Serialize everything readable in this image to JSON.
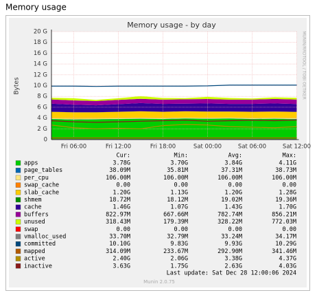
{
  "header": {
    "title": "Memory usage"
  },
  "chart_data": {
    "type": "stacked-area",
    "title": "Memory usage - by day",
    "ylabel": "Bytes",
    "watermark": "MUNIN/RRDTOOL / TOBI OETIKER",
    "x": [
      null,
      "Fri 06:00",
      null,
      "Fri 12:00",
      null,
      "Fri 18:00",
      null,
      "Sat 00:00",
      null,
      "Sat 06:00",
      null,
      "Sat 12:00"
    ],
    "ylim": [
      0,
      20
    ],
    "yticks": [
      0,
      {
        "value": 2,
        "label": "2 G"
      },
      {
        "value": 4,
        "label": "4 G"
      },
      {
        "value": 6,
        "label": "6 G"
      },
      {
        "value": 8,
        "label": "8 G"
      },
      {
        "value": 10,
        "label": "10 G"
      },
      {
        "value": 12,
        "label": "12 G"
      },
      {
        "value": 14,
        "label": "14 G"
      },
      {
        "value": 16,
        "label": "16 G"
      },
      {
        "value": 18,
        "label": "18 G"
      },
      {
        "value": 20,
        "label": "20 G"
      }
    ],
    "grid": true,
    "legend_columns": [
      "Cur:",
      "Min:",
      "Avg:",
      "Max:"
    ],
    "series": [
      {
        "name": "apps",
        "kind": "area",
        "color": "#00cc00",
        "values": [
          3.8,
          3.7,
          3.75,
          3.8,
          3.85,
          3.8,
          3.9,
          3.85,
          3.9,
          3.8,
          3.85,
          3.78
        ],
        "stats": [
          "3.78G",
          "3.70G",
          "3.84G",
          "4.11G"
        ]
      },
      {
        "name": "page_tables",
        "kind": "area",
        "color": "#0066b3",
        "values": [
          0.04,
          0.04,
          0.04,
          0.04,
          0.04,
          0.04,
          0.04,
          0.04,
          0.04,
          0.04,
          0.04,
          0.04
        ],
        "stats": [
          "38.09M",
          "35.81M",
          "37.31M",
          "38.73M"
        ]
      },
      {
        "name": "per_cpu",
        "kind": "area",
        "color": "#ffe680",
        "values": [
          0.1,
          0.1,
          0.1,
          0.1,
          0.1,
          0.1,
          0.1,
          0.1,
          0.1,
          0.1,
          0.1,
          0.1
        ],
        "stats": [
          "106.00M",
          "106.00M",
          "106.00M",
          "106.00M"
        ]
      },
      {
        "name": "swap_cache",
        "kind": "area",
        "color": "#ff8000",
        "values": [
          0,
          0,
          0,
          0,
          0,
          0,
          0,
          0,
          0,
          0,
          0,
          0
        ],
        "stats": [
          "0.00",
          "0.00",
          "0.00",
          "0.00"
        ]
      },
      {
        "name": "slab_cache",
        "kind": "area",
        "color": "#ffcc00",
        "values": [
          1.2,
          1.2,
          1.15,
          1.2,
          1.25,
          1.2,
          1.2,
          1.2,
          1.15,
          1.2,
          1.2,
          1.2
        ],
        "stats": [
          "1.20G",
          "1.13G",
          "1.20G",
          "1.28G"
        ]
      },
      {
        "name": "shmem",
        "kind": "area",
        "color": "#008f00",
        "values": [
          0.02,
          0.02,
          0.02,
          0.02,
          0.02,
          0.02,
          0.02,
          0.02,
          0.02,
          0.02,
          0.02,
          0.02
        ],
        "stats": [
          "18.72M",
          "18.12M",
          "19.02M",
          "19.36M"
        ]
      },
      {
        "name": "cache",
        "kind": "area",
        "color": "#330099",
        "values": [
          1.5,
          1.4,
          1.3,
          1.4,
          1.5,
          1.45,
          1.4,
          1.5,
          1.4,
          1.45,
          1.5,
          1.46
        ],
        "stats": [
          "1.46G",
          "1.07G",
          "1.43G",
          "1.70G"
        ]
      },
      {
        "name": "buffers",
        "kind": "area",
        "color": "#990099",
        "values": [
          0.78,
          0.8,
          0.79,
          0.8,
          0.78,
          0.8,
          0.81,
          0.8,
          0.79,
          0.8,
          0.82,
          0.82
        ],
        "stats": [
          "822.97M",
          "667.66M",
          "782.74M",
          "856.21M"
        ]
      },
      {
        "name": "unused",
        "kind": "area",
        "color": "#ccff00",
        "values": [
          0.3,
          0.4,
          0.2,
          0.3,
          0.5,
          0.3,
          0.2,
          0.4,
          0.3,
          0.2,
          0.3,
          0.32
        ],
        "stats": [
          "318.43M",
          "179.39M",
          "328.22M",
          "772.03M"
        ]
      },
      {
        "name": "swap",
        "kind": "area",
        "color": "#ff0000",
        "values": [
          0,
          0,
          0,
          0,
          0,
          0,
          0,
          0,
          0,
          0,
          0,
          0
        ],
        "stats": [
          "0.00",
          "0.00",
          "0.00",
          "0.00"
        ]
      },
      {
        "name": "vmalloc_used",
        "kind": "line",
        "color": "#808080",
        "values": [
          0.03,
          0.03,
          0.03,
          0.03,
          0.03,
          0.03,
          0.03,
          0.03,
          0.03,
          0.03,
          0.03,
          0.03
        ],
        "stats": [
          "33.70M",
          "32.79M",
          "33.24M",
          "34.17M"
        ]
      },
      {
        "name": "committed",
        "kind": "line",
        "color": "#00487d",
        "values": [
          9.9,
          9.9,
          9.85,
          9.9,
          9.9,
          9.9,
          9.9,
          9.95,
          10.1,
          10.1,
          10.1,
          10.1
        ],
        "stats": [
          "10.10G",
          "9.83G",
          "9.93G",
          "10.29G"
        ]
      },
      {
        "name": "mapped",
        "kind": "line",
        "color": "#b35a00",
        "values": [
          0.3,
          0.3,
          0.3,
          0.3,
          0.3,
          0.3,
          0.3,
          0.3,
          0.3,
          0.3,
          0.3,
          0.3
        ],
        "stats": [
          "314.09M",
          "233.67M",
          "292.90M",
          "341.46M"
        ]
      },
      {
        "name": "active",
        "kind": "line",
        "color": "#b38f00",
        "values": [
          2.7,
          2.2,
          2.0,
          2.1,
          2.0,
          2.6,
          2.8,
          2.7,
          2.4,
          2.3,
          2.2,
          2.4
        ],
        "stats": [
          "2.40G",
          "2.06G",
          "3.38G",
          "4.37G"
        ]
      },
      {
        "name": "inactive",
        "kind": "line",
        "color": "#8b1a1a",
        "values": [
          3.5,
          3.3,
          3.2,
          3.3,
          3.4,
          3.5,
          3.6,
          3.4,
          3.5,
          3.6,
          3.5,
          3.63
        ],
        "stats": [
          "3.63G",
          "1.75G",
          "2.63G",
          "4.03G"
        ]
      }
    ],
    "last_update": "Last update: Sat Dec 28 12:00:06 2024",
    "footer": "Munin 2.0.75"
  }
}
